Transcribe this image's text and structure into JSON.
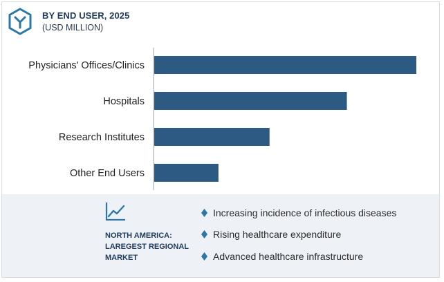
{
  "header": {
    "title": "BY END USER, 2025",
    "subtitle": "(USD MILLION)"
  },
  "colors": {
    "bar": "#2d5a83",
    "accent": "#2b78a8",
    "title": "#1e3a5c",
    "panel_bg": "#eef1f6"
  },
  "chart_data": {
    "type": "bar",
    "orientation": "horizontal",
    "title": "BY END USER, 2025",
    "subtitle": "(USD MILLION)",
    "categories": [
      "Physicians' Offices/Clinics",
      "Hospitals",
      "Research Institutes",
      "Other End Users"
    ],
    "values": [
      100,
      73.5,
      44,
      24.5
    ],
    "value_scale": "relative (no axis values shown)",
    "xlim": [
      0,
      100
    ],
    "grid": false,
    "legend": "none"
  },
  "footer": {
    "icon": "line-chart-icon",
    "region_label": "NORTH AMERICA:\nLAREGEST REGIONAL\nMARKET",
    "region_lines": [
      "NORTH AMERICA:",
      "LAREGEST REGIONAL",
      "MARKET"
    ],
    "bullet_icon": "diamond-icon",
    "drivers": [
      "Increasing incidence of infectious diseases",
      "Rising healthcare expenditure",
      "Advanced healthcare infrastructure"
    ]
  }
}
